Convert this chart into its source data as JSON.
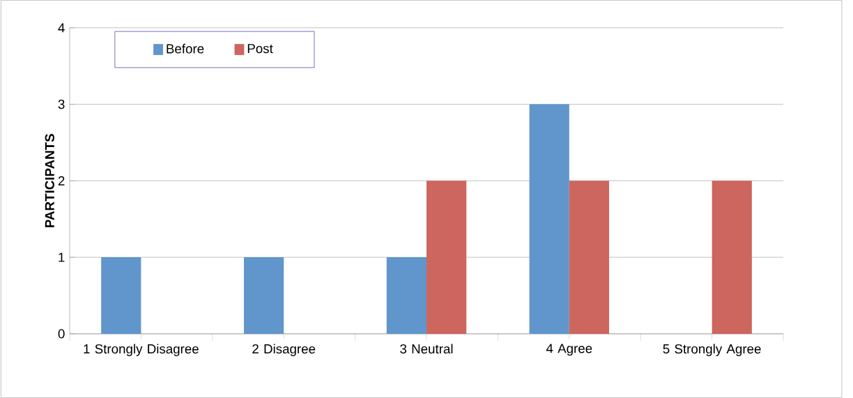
{
  "chart_data": {
    "type": "bar",
    "ylabel": "PARTICIPANTS",
    "categories": [
      "1 Strongly Disagree",
      "2 Disagree",
      "3 Neutral",
      "4 Agree",
      "5 Strongly Agree"
    ],
    "series": [
      {
        "name": "Before",
        "color": "#6096cb",
        "values": [
          1,
          1,
          1,
          3,
          0
        ]
      },
      {
        "name": "Post",
        "color": "#cd665e",
        "values": [
          0,
          0,
          2,
          2,
          2
        ]
      }
    ],
    "ylim": [
      0,
      4
    ],
    "yticks": [
      0,
      1,
      2,
      3,
      4
    ],
    "grid": "y",
    "legend": "top left"
  }
}
